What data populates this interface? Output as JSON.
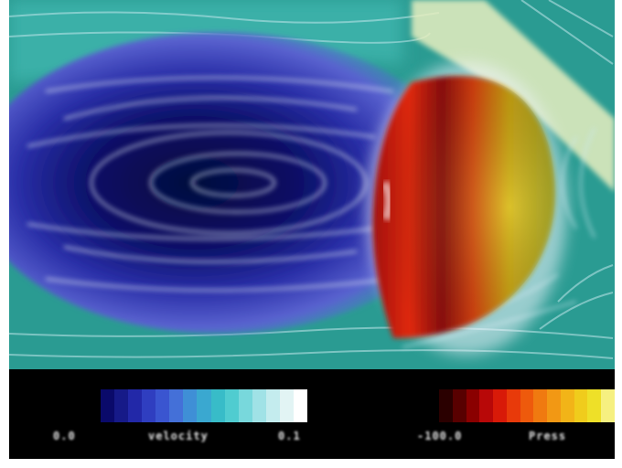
{
  "legend": {
    "velocity": {
      "min_label": "0.0",
      "name": "velocity",
      "max_label": "0.1"
    },
    "pressure": {
      "min_label": "-100.0",
      "name": "Press"
    }
  },
  "colors": {
    "background_flow": "#2a9b92",
    "wake_core": "#05084a",
    "streamline": "#d6dff0",
    "body_red": "#cc1a08",
    "body_yellow": "#b8b81c",
    "cone": "#e8efc0",
    "legend_background": "#000000"
  }
}
